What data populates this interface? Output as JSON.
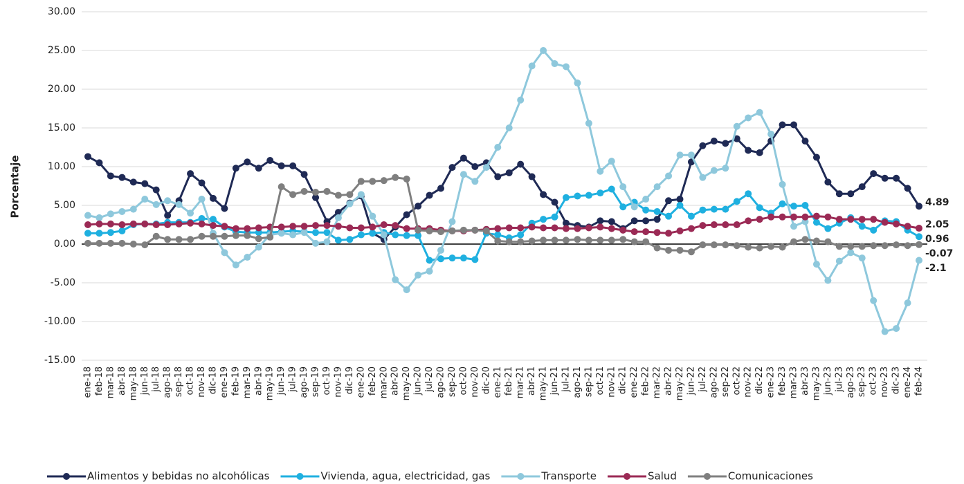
{
  "chart_data": {
    "type": "line",
    "y_label": "Porcentaje",
    "categories": [
      "ene-18",
      "feb-18",
      "mar-18",
      "abr-18",
      "may-18",
      "jun-18",
      "jul-18",
      "ago-18",
      "sep-18",
      "oct-18",
      "nov-18",
      "dic-18",
      "ene-19",
      "feb-19",
      "mar-19",
      "abr-19",
      "may-19",
      "jun-19",
      "jul-19",
      "ago-19",
      "sep-19",
      "oct-19",
      "nov-19",
      "dic-19",
      "ene-20",
      "feb-20",
      "mar-20",
      "abr-20",
      "may-20",
      "jun-20",
      "jul-20",
      "ago-20",
      "sep-20",
      "oct-20",
      "nov-20",
      "dic-20",
      "ene-21",
      "feb-21",
      "mar-21",
      "abr-21",
      "may-21",
      "jun-21",
      "jul-21",
      "ago-21",
      "sep-21",
      "oct-21",
      "nov-21",
      "dic-21",
      "ene-22",
      "feb-22",
      "mar-22",
      "abr-22",
      "may-22",
      "jun-22",
      "jul-22",
      "ago-22",
      "sep-22",
      "oct-22",
      "nov-22",
      "dic-22",
      "ene-23",
      "feb-23",
      "mar-23",
      "abr-23",
      "may-23",
      "jun-23",
      "jul-23",
      "ago-23",
      "sep-23",
      "oct-23",
      "nov-23",
      "dic-23",
      "ene-24",
      "feb-24"
    ],
    "ylim": [
      -15,
      30
    ],
    "yticks": [
      {
        "value": -15,
        "label": "-15.00"
      },
      {
        "value": -10,
        "label": "-10.00"
      },
      {
        "value": -5,
        "label": "-5.00"
      },
      {
        "value": 0,
        "label": "0.00"
      },
      {
        "value": 5,
        "label": "5.00"
      },
      {
        "value": 10,
        "label": "10.00"
      },
      {
        "value": 15,
        "label": "15.00"
      },
      {
        "value": 20,
        "label": "20.00"
      },
      {
        "value": 25,
        "label": "25.00"
      },
      {
        "value": 30,
        "label": "30.00"
      }
    ],
    "grid": true,
    "legend": "bottom",
    "series": [
      {
        "name": "Alimentos y bebidas no alcohólicas",
        "color": "#1f2a55",
        "values": [
          11.3,
          10.5,
          8.8,
          8.6,
          8.0,
          7.8,
          7.0,
          3.7,
          5.6,
          9.1,
          7.9,
          5.9,
          4.6,
          9.8,
          10.6,
          9.8,
          10.8,
          10.1,
          10.1,
          9.0,
          6.0,
          2.9,
          4.1,
          5.3,
          6.2,
          1.4,
          0.6,
          2.2,
          3.8,
          4.9,
          6.3,
          7.2,
          9.9,
          11.1,
          10.0,
          10.5,
          8.7,
          9.2,
          10.3,
          8.7,
          6.4,
          5.4,
          2.7,
          2.4,
          2.2,
          3.0,
          2.9,
          2.0,
          3.0,
          3.0,
          3.2,
          5.6,
          5.8,
          10.6,
          12.7,
          13.3,
          13.0,
          13.6,
          12.1,
          11.8,
          13.3,
          15.4,
          15.4,
          13.3,
          11.2,
          8.0,
          6.5,
          6.5,
          7.4,
          9.1,
          8.5,
          8.5,
          7.2,
          4.89
        ]
      },
      {
        "name": "Vivienda, agua, electricidad, gas",
        "color": "#1fb0e0",
        "values": [
          1.4,
          1.4,
          1.5,
          1.7,
          2.5,
          2.6,
          2.6,
          2.8,
          2.8,
          2.8,
          3.3,
          3.2,
          2.2,
          1.6,
          1.5,
          1.5,
          1.5,
          1.6,
          1.7,
          1.6,
          1.5,
          1.5,
          0.5,
          0.6,
          1.2,
          1.4,
          1.5,
          1.2,
          1.1,
          1.1,
          -2.1,
          -1.9,
          -1.8,
          -1.8,
          -2.0,
          1.4,
          1.2,
          0.8,
          1.2,
          2.7,
          3.2,
          3.5,
          6.0,
          6.2,
          6.3,
          6.6,
          7.1,
          4.8,
          5.4,
          4.4,
          4.2,
          3.6,
          5.0,
          3.6,
          4.4,
          4.5,
          4.5,
          5.5,
          6.5,
          4.7,
          4.0,
          5.2,
          4.9,
          5.0,
          2.8,
          2.0,
          2.7,
          3.4,
          2.3,
          1.8,
          3.0,
          2.9,
          1.8,
          0.96
        ]
      },
      {
        "name": "Transporte",
        "color": "#8ec8dc",
        "values": [
          3.7,
          3.4,
          3.9,
          4.2,
          4.5,
          5.8,
          5.1,
          5.6,
          5.1,
          4.0,
          5.8,
          1.4,
          -1.1,
          -2.7,
          -1.7,
          -0.4,
          1.2,
          1.4,
          1.2,
          1.5,
          0.1,
          0.3,
          3.4,
          5.2,
          6.4,
          3.6,
          1.2,
          -4.6,
          -5.9,
          -4.0,
          -3.5,
          -0.8,
          2.9,
          9.0,
          8.1,
          9.9,
          12.5,
          15.0,
          18.6,
          23.0,
          25.0,
          23.3,
          22.9,
          20.8,
          15.6,
          9.4,
          10.7,
          7.4,
          4.8,
          5.8,
          7.4,
          8.8,
          11.5,
          11.5,
          8.6,
          9.5,
          9.8,
          15.2,
          16.3,
          17.0,
          14.2,
          7.7,
          2.3,
          2.9,
          -2.6,
          -4.7,
          -2.2,
          -1.1,
          -1.8,
          -7.3,
          -11.3,
          -10.9,
          -7.6,
          -2.1
        ]
      },
      {
        "name": "Salud",
        "color": "#9b2a55",
        "values": [
          2.5,
          2.6,
          2.6,
          2.5,
          2.6,
          2.6,
          2.5,
          2.5,
          2.6,
          2.7,
          2.6,
          2.4,
          2.3,
          2.0,
          2.0,
          2.1,
          2.2,
          2.2,
          2.3,
          2.3,
          2.4,
          2.4,
          2.3,
          2.1,
          2.1,
          2.2,
          2.5,
          2.4,
          2.0,
          2.0,
          2.0,
          1.8,
          1.7,
          1.7,
          1.8,
          1.9,
          2.0,
          2.1,
          2.1,
          2.2,
          2.1,
          2.1,
          2.0,
          2.0,
          2.1,
          2.2,
          2.0,
          1.8,
          1.6,
          1.6,
          1.5,
          1.4,
          1.7,
          2.0,
          2.4,
          2.5,
          2.5,
          2.5,
          3.0,
          3.2,
          3.5,
          3.5,
          3.5,
          3.5,
          3.6,
          3.5,
          3.2,
          3.2,
          3.2,
          3.2,
          2.8,
          2.6,
          2.3,
          2.05
        ]
      },
      {
        "name": "Comunicaciones",
        "color": "#7f7f7f",
        "values": [
          0.1,
          0.1,
          0.1,
          0.1,
          0,
          -0.1,
          1.0,
          0.6,
          0.6,
          0.6,
          1.0,
          1.0,
          1.0,
          1.1,
          1.1,
          0.7,
          0.9,
          7.4,
          6.4,
          6.8,
          6.7,
          6.8,
          6.3,
          6.4,
          8.1,
          8.1,
          8.2,
          8.6,
          8.4,
          1.8,
          1.7,
          1.6,
          1.7,
          1.8,
          1.8,
          1.7,
          0.4,
          0.3,
          0.3,
          0.4,
          0.5,
          0.5,
          0.5,
          0.6,
          0.5,
          0.5,
          0.5,
          0.6,
          0.3,
          0.3,
          -0.5,
          -0.8,
          -0.8,
          -1.0,
          -0.1,
          -0.1,
          -0.1,
          -0.2,
          -0.4,
          -0.5,
          -0.3,
          -0.4,
          0.3,
          0.6,
          0.4,
          0.3,
          -0.3,
          -0.3,
          -0.3,
          -0.2,
          -0.2,
          -0.1,
          -0.2,
          -0.07
        ]
      }
    ]
  }
}
